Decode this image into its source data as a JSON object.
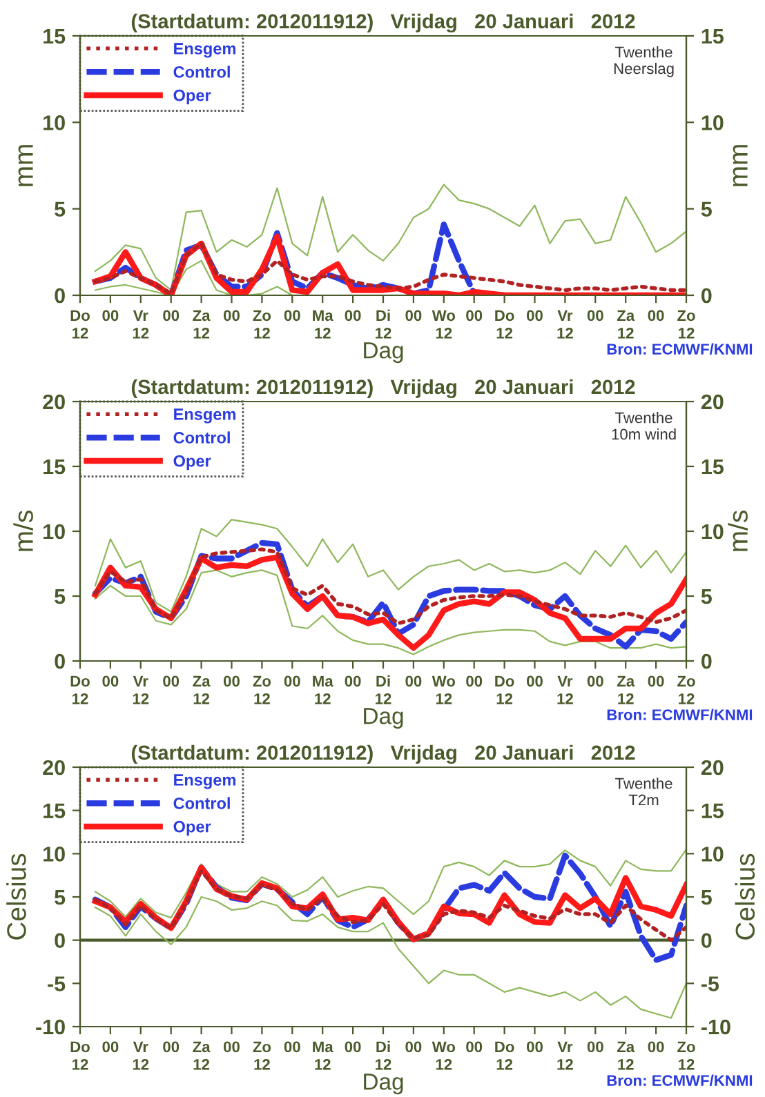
{
  "chart_data": [
    {
      "type": "line",
      "title": "(Startdatum: 2012011912)   Vrijdag   20 Januari   2012",
      "xlabel": "Dag",
      "ylabel": "mm",
      "y2label": "mm",
      "annotations": [
        "Twenthe\nNeerslag",
        "Bron: ECMWF/KNMI"
      ],
      "x": [
        "2012-01-19T18:00",
        "2012-01-20T00:00",
        "2012-01-20T06:00",
        "2012-01-20T12:00",
        "2012-01-20T18:00",
        "2012-01-21T00:00",
        "2012-01-21T06:00",
        "2012-01-21T12:00",
        "2012-01-21T18:00",
        "2012-01-22T00:00",
        "2012-01-22T06:00",
        "2012-01-22T12:00",
        "2012-01-22T18:00",
        "2012-01-23T00:00",
        "2012-01-23T06:00",
        "2012-01-23T12:00",
        "2012-01-23T18:00",
        "2012-01-24T00:00",
        "2012-01-24T06:00",
        "2012-01-24T12:00",
        "2012-01-24T18:00",
        "2012-01-25T00:00",
        "2012-01-25T06:00",
        "2012-01-25T12:00",
        "2012-01-25T18:00",
        "2012-01-26T00:00",
        "2012-01-26T06:00",
        "2012-01-26T12:00",
        "2012-01-26T18:00",
        "2012-01-27T00:00",
        "2012-01-27T06:00",
        "2012-01-27T12:00",
        "2012-01-27T18:00",
        "2012-01-28T00:00",
        "2012-01-28T06:00",
        "2012-01-28T12:00",
        "2012-01-28T18:00",
        "2012-01-29T00:00",
        "2012-01-29T06:00",
        "2012-01-29T12:00"
      ],
      "xlim": [
        "2012-01-19T12:00",
        "2012-01-29T12:00"
      ],
      "xticks": [
        {
          "value": "2012-01-19T12:00",
          "label": "Do\n12"
        },
        {
          "value": "2012-01-20T00:00",
          "label": "00"
        },
        {
          "value": "2012-01-20T12:00",
          "label": "Vr\n12"
        },
        {
          "value": "2012-01-21T00:00",
          "label": "00"
        },
        {
          "value": "2012-01-21T12:00",
          "label": "Za\n12"
        },
        {
          "value": "2012-01-22T00:00",
          "label": "00"
        },
        {
          "value": "2012-01-22T12:00",
          "label": "Zo\n12"
        },
        {
          "value": "2012-01-23T00:00",
          "label": "00"
        },
        {
          "value": "2012-01-23T12:00",
          "label": "Ma\n12"
        },
        {
          "value": "2012-01-24T00:00",
          "label": "00"
        },
        {
          "value": "2012-01-24T12:00",
          "label": "Di\n12"
        },
        {
          "value": "2012-01-25T00:00",
          "label": "00"
        },
        {
          "value": "2012-01-25T12:00",
          "label": "Wo\n12"
        },
        {
          "value": "2012-01-26T00:00",
          "label": "00"
        },
        {
          "value": "2012-01-26T12:00",
          "label": "Do\n12"
        },
        {
          "value": "2012-01-27T00:00",
          "label": "00"
        },
        {
          "value": "2012-01-27T12:00",
          "label": "Vr\n12"
        },
        {
          "value": "2012-01-28T00:00",
          "label": "00"
        },
        {
          "value": "2012-01-28T12:00",
          "label": "Za\n12"
        },
        {
          "value": "2012-01-29T00:00",
          "label": "00"
        },
        {
          "value": "2012-01-29T12:00",
          "label": "Zo\n12"
        }
      ],
      "ylim": [
        0,
        15
      ],
      "yticks": [
        0,
        5,
        10,
        15
      ],
      "y2lim": [
        0,
        15
      ],
      "y2ticks": [
        0,
        5,
        10,
        15
      ],
      "legend": "top left",
      "grid": false,
      "series": [
        {
          "color": "#8fb85c",
          "values": [
            1.4,
            2.0,
            2.9,
            2.7,
            1.0,
            0.3,
            4.8,
            4.9,
            2.5,
            3.2,
            2.8,
            3.5,
            6.2,
            3.0,
            2.3,
            5.7,
            2.5,
            3.5,
            2.6,
            2.0,
            3.0,
            4.5,
            5.0,
            6.4,
            5.5,
            5.3,
            5.0,
            4.5,
            4.0,
            5.2,
            3.0,
            4.3,
            4.4,
            3.0,
            3.2,
            5.7,
            4.2,
            2.5,
            3.0,
            3.7
          ]
        },
        {
          "color": "#8fb85c",
          "values": [
            0.3,
            0.5,
            0.6,
            0.4,
            0.2,
            0.0,
            1.5,
            2.0,
            0.3,
            0.0,
            0.0,
            0.1,
            0.5,
            0.0,
            null,
            null,
            null,
            null,
            null,
            null,
            null,
            null,
            null,
            null,
            null,
            null,
            null,
            null,
            null,
            null,
            null,
            null,
            null,
            null,
            null,
            null,
            null,
            null,
            null,
            null
          ]
        },
        {
          "name": "Ensgem",
          "color": "#b22222",
          "line_style": "dotted",
          "values": [
            0.8,
            1.0,
            1.4,
            1.0,
            0.6,
            0.1,
            2.3,
            3.0,
            1.2,
            0.9,
            0.8,
            1.2,
            2.0,
            1.2,
            0.9,
            1.1,
            1.1,
            0.8,
            0.6,
            0.5,
            0.4,
            0.5,
            0.9,
            1.2,
            1.1,
            1.0,
            0.9,
            0.8,
            0.6,
            0.5,
            0.4,
            0.3,
            0.4,
            0.4,
            0.3,
            0.4,
            0.5,
            0.4,
            0.3,
            0.3
          ]
        },
        {
          "name": "Control",
          "color": "#2a3be0",
          "line_style": "dashed",
          "values": [
            0.8,
            1.0,
            1.6,
            1.0,
            0.6,
            0.0,
            2.6,
            2.9,
            1.2,
            0.5,
            0.5,
            1.2,
            3.6,
            0.8,
            0.4,
            1.3,
            1.0,
            0.6,
            0.4,
            0.6,
            0.4,
            0.1,
            0.3,
            4.1,
            2.0,
            0.1,
            0.0,
            0.0,
            null,
            null,
            null,
            null,
            null,
            null,
            null,
            null,
            null,
            null,
            null,
            null
          ]
        },
        {
          "name": "Oper",
          "color": "#ff1a1a",
          "line_style": "solid",
          "values": [
            0.8,
            1.1,
            2.5,
            1.0,
            0.6,
            0.0,
            2.3,
            3.0,
            1.0,
            0.2,
            0.2,
            1.5,
            3.4,
            0.3,
            0.2,
            1.3,
            1.8,
            0.3,
            0.3,
            0.3,
            0.4,
            0.1,
            0.1,
            0.1,
            0.0,
            0.2,
            0.1,
            0.0,
            0.0,
            0.0,
            0.0,
            0.0,
            0.0,
            0.0,
            0.0,
            0.0,
            0.0,
            0.0,
            0.0,
            0.0
          ]
        }
      ]
    },
    {
      "type": "line",
      "title": "(Startdatum: 2012011912)   Vrijdag   20 Januari   2012",
      "xlabel": "Dag",
      "ylabel": "m/s",
      "y2label": "m/s",
      "annotations": [
        "Twenthe\n10m wind",
        "Bron: ECMWF/KNMI"
      ],
      "x": [
        "2012-01-19T18:00",
        "2012-01-20T00:00",
        "2012-01-20T06:00",
        "2012-01-20T12:00",
        "2012-01-20T18:00",
        "2012-01-21T00:00",
        "2012-01-21T06:00",
        "2012-01-21T12:00",
        "2012-01-21T18:00",
        "2012-01-22T00:00",
        "2012-01-22T06:00",
        "2012-01-22T12:00",
        "2012-01-22T18:00",
        "2012-01-23T00:00",
        "2012-01-23T06:00",
        "2012-01-23T12:00",
        "2012-01-23T18:00",
        "2012-01-24T00:00",
        "2012-01-24T06:00",
        "2012-01-24T12:00",
        "2012-01-24T18:00",
        "2012-01-25T00:00",
        "2012-01-25T06:00",
        "2012-01-25T12:00",
        "2012-01-25T18:00",
        "2012-01-26T00:00",
        "2012-01-26T06:00",
        "2012-01-26T12:00",
        "2012-01-26T18:00",
        "2012-01-27T00:00",
        "2012-01-27T06:00",
        "2012-01-27T12:00",
        "2012-01-27T18:00",
        "2012-01-28T00:00",
        "2012-01-28T06:00",
        "2012-01-28T12:00",
        "2012-01-28T18:00",
        "2012-01-29T00:00",
        "2012-01-29T06:00",
        "2012-01-29T12:00"
      ],
      "xlim": [
        "2012-01-19T12:00",
        "2012-01-29T12:00"
      ],
      "xticks": [
        {
          "value": "2012-01-19T12:00",
          "label": "Do\n12"
        },
        {
          "value": "2012-01-20T00:00",
          "label": "00"
        },
        {
          "value": "2012-01-20T12:00",
          "label": "Vr\n12"
        },
        {
          "value": "2012-01-21T00:00",
          "label": "00"
        },
        {
          "value": "2012-01-21T12:00",
          "label": "Za\n12"
        },
        {
          "value": "2012-01-22T00:00",
          "label": "00"
        },
        {
          "value": "2012-01-22T12:00",
          "label": "Zo\n12"
        },
        {
          "value": "2012-01-23T00:00",
          "label": "00"
        },
        {
          "value": "2012-01-23T12:00",
          "label": "Ma\n12"
        },
        {
          "value": "2012-01-24T00:00",
          "label": "00"
        },
        {
          "value": "2012-01-24T12:00",
          "label": "Di\n12"
        },
        {
          "value": "2012-01-25T00:00",
          "label": "00"
        },
        {
          "value": "2012-01-25T12:00",
          "label": "Wo\n12"
        },
        {
          "value": "2012-01-26T00:00",
          "label": "00"
        },
        {
          "value": "2012-01-26T12:00",
          "label": "Do\n12"
        },
        {
          "value": "2012-01-27T00:00",
          "label": "00"
        },
        {
          "value": "2012-01-27T12:00",
          "label": "Vr\n12"
        },
        {
          "value": "2012-01-28T00:00",
          "label": "00"
        },
        {
          "value": "2012-01-28T12:00",
          "label": "Za\n12"
        },
        {
          "value": "2012-01-29T00:00",
          "label": "00"
        },
        {
          "value": "2012-01-29T12:00",
          "label": "Zo\n12"
        }
      ],
      "ylim": [
        0,
        20
      ],
      "yticks": [
        0,
        5,
        10,
        15,
        20
      ],
      "y2lim": [
        0,
        20
      ],
      "y2ticks": [
        0,
        5,
        10,
        15,
        20
      ],
      "legend": "top left",
      "grid": false,
      "series": [
        {
          "color": "#8fb85c",
          "values": [
            5.8,
            9.4,
            7.2,
            7.7,
            4.5,
            3.8,
            6.5,
            10.2,
            9.6,
            10.9,
            10.7,
            10.5,
            10.2,
            8.8,
            7.3,
            9.4,
            7.6,
            9.0,
            6.5,
            7.0,
            5.5,
            6.5,
            7.3,
            7.5,
            7.8,
            7.0,
            7.5,
            6.9,
            7.0,
            6.8,
            7.0,
            7.6,
            6.7,
            8.5,
            7.3,
            8.9,
            7.2,
            8.5,
            6.8,
            8.4
          ]
        },
        {
          "color": "#8fb85c",
          "values": [
            4.8,
            5.8,
            5.0,
            5.0,
            3.1,
            2.8,
            4.0,
            6.8,
            7.0,
            6.5,
            6.8,
            7.0,
            6.6,
            2.7,
            2.5,
            3.5,
            2.3,
            1.6,
            1.3,
            1.3,
            1.0,
            0.5,
            1.1,
            1.6,
            2.0,
            2.2,
            2.3,
            2.4,
            2.4,
            2.3,
            1.5,
            1.2,
            1.5,
            1.5,
            1.0,
            1.0,
            1.0,
            1.3,
            1.0,
            1.1
          ]
        },
        {
          "name": "Ensgem",
          "color": "#b22222",
          "line_style": "dotted",
          "values": [
            5.2,
            6.9,
            6.1,
            6.3,
            3.9,
            3.3,
            5.3,
            8.0,
            8.3,
            8.4,
            8.5,
            8.6,
            8.4,
            5.6,
            5.1,
            5.8,
            4.4,
            4.2,
            3.6,
            3.7,
            2.9,
            3.2,
            4.2,
            4.7,
            4.9,
            5.0,
            5.0,
            5.1,
            5.0,
            4.6,
            4.3,
            4.0,
            3.5,
            3.5,
            3.4,
            3.7,
            3.4,
            3.0,
            3.3,
            3.9
          ]
        },
        {
          "name": "Control",
          "color": "#2a3be0",
          "line_style": "dashed",
          "values": [
            5.2,
            6.4,
            6.0,
            6.5,
            3.8,
            3.3,
            5.0,
            8.1,
            7.9,
            7.9,
            8.5,
            9.1,
            9.0,
            5.5,
            4.2,
            5.0,
            3.5,
            3.4,
            3.0,
            4.5,
            2.1,
            2.8,
            5.0,
            5.4,
            5.5,
            5.5,
            5.4,
            5.4,
            5.0,
            4.3,
            4.0,
            5.0,
            3.5,
            2.5,
            2.0,
            1.1,
            2.4,
            2.3,
            1.7,
            3.0
          ]
        },
        {
          "name": "Oper",
          "color": "#ff1a1a",
          "line_style": "solid",
          "values": [
            5.1,
            7.2,
            5.8,
            5.7,
            4.0,
            3.3,
            5.5,
            7.9,
            7.2,
            7.4,
            7.3,
            7.8,
            8.0,
            5.2,
            4.0,
            5.0,
            3.5,
            3.4,
            2.9,
            3.2,
            2.0,
            1.0,
            2.0,
            3.9,
            4.4,
            4.6,
            4.4,
            5.3,
            5.3,
            4.7,
            3.7,
            3.3,
            1.7,
            1.7,
            1.7,
            2.5,
            2.5,
            3.7,
            4.4,
            6.3
          ]
        }
      ]
    },
    {
      "type": "line",
      "title": "(Startdatum: 2012011912)   Vrijdag   20 Januari   2012",
      "xlabel": "Dag",
      "ylabel": "Celsius",
      "y2label": "Celsius",
      "annotations": [
        "Twenthe\nT2m",
        "Bron: ECMWF/KNMI"
      ],
      "x": [
        "2012-01-19T18:00",
        "2012-01-20T00:00",
        "2012-01-20T06:00",
        "2012-01-20T12:00",
        "2012-01-20T18:00",
        "2012-01-21T00:00",
        "2012-01-21T06:00",
        "2012-01-21T12:00",
        "2012-01-21T18:00",
        "2012-01-22T00:00",
        "2012-01-22T06:00",
        "2012-01-22T12:00",
        "2012-01-22T18:00",
        "2012-01-23T00:00",
        "2012-01-23T06:00",
        "2012-01-23T12:00",
        "2012-01-23T18:00",
        "2012-01-24T00:00",
        "2012-01-24T06:00",
        "2012-01-24T12:00",
        "2012-01-24T18:00",
        "2012-01-25T00:00",
        "2012-01-25T06:00",
        "2012-01-25T12:00",
        "2012-01-25T18:00",
        "2012-01-26T00:00",
        "2012-01-26T06:00",
        "2012-01-26T12:00",
        "2012-01-26T18:00",
        "2012-01-27T00:00",
        "2012-01-27T06:00",
        "2012-01-27T12:00",
        "2012-01-27T18:00",
        "2012-01-28T00:00",
        "2012-01-28T06:00",
        "2012-01-28T12:00",
        "2012-01-28T18:00",
        "2012-01-29T00:00",
        "2012-01-29T06:00",
        "2012-01-29T12:00"
      ],
      "xlim": [
        "2012-01-19T12:00",
        "2012-01-29T12:00"
      ],
      "xticks": [
        {
          "value": "2012-01-19T12:00",
          "label": "Do\n12"
        },
        {
          "value": "2012-01-20T00:00",
          "label": "00"
        },
        {
          "value": "2012-01-20T12:00",
          "label": "Vr\n12"
        },
        {
          "value": "2012-01-21T00:00",
          "label": "00"
        },
        {
          "value": "2012-01-21T12:00",
          "label": "Za\n12"
        },
        {
          "value": "2012-01-22T00:00",
          "label": "00"
        },
        {
          "value": "2012-01-22T12:00",
          "label": "Zo\n12"
        },
        {
          "value": "2012-01-23T00:00",
          "label": "00"
        },
        {
          "value": "2012-01-23T12:00",
          "label": "Ma\n12"
        },
        {
          "value": "2012-01-24T00:00",
          "label": "00"
        },
        {
          "value": "2012-01-24T12:00",
          "label": "Di\n12"
        },
        {
          "value": "2012-01-25T00:00",
          "label": "00"
        },
        {
          "value": "2012-01-25T12:00",
          "label": "Wo\n12"
        },
        {
          "value": "2012-01-26T00:00",
          "label": "00"
        },
        {
          "value": "2012-01-26T12:00",
          "label": "Do\n12"
        },
        {
          "value": "2012-01-27T00:00",
          "label": "00"
        },
        {
          "value": "2012-01-27T12:00",
          "label": "Vr\n12"
        },
        {
          "value": "2012-01-28T00:00",
          "label": "00"
        },
        {
          "value": "2012-01-28T12:00",
          "label": "Za\n12"
        },
        {
          "value": "2012-01-29T00:00",
          "label": "00"
        },
        {
          "value": "2012-01-29T12:00",
          "label": "Zo\n12"
        }
      ],
      "ylim": [
        -10,
        20
      ],
      "yticks": [
        -10,
        -5,
        0,
        5,
        10,
        15,
        20
      ],
      "y2lim": [
        -10,
        20
      ],
      "y2ticks": [
        -10,
        -5,
        0,
        5,
        10,
        15,
        20
      ],
      "legend": "top left",
      "grid": false,
      "ref_lines": [
        {
          "axis": "y",
          "value": 0,
          "color": "#4a5a2a"
        }
      ],
      "series": [
        {
          "color": "#8fb85c",
          "values": [
            5.6,
            4.5,
            2.7,
            4.8,
            3.2,
            2.6,
            5.5,
            8.8,
            6.5,
            5.6,
            5.6,
            7.3,
            6.5,
            5.0,
            5.8,
            7.3,
            5.0,
            5.7,
            6.2,
            6.0,
            4.5,
            3.0,
            4.5,
            8.5,
            9.0,
            8.5,
            7.5,
            9.2,
            8.5,
            8.5,
            8.8,
            10.4,
            9.2,
            8.5,
            6.3,
            9.2,
            8.2,
            8.0,
            8.0,
            10.5
          ]
        },
        {
          "color": "#8fb85c",
          "values": [
            3.8,
            2.8,
            0.5,
            3.0,
            1.0,
            -0.5,
            1.5,
            5.0,
            4.5,
            3.5,
            3.7,
            4.5,
            4.0,
            2.3,
            2.2,
            3.0,
            1.5,
            1.0,
            1.0,
            2.0,
            -1.0,
            -3.0,
            -5.0,
            -3.5,
            -4.0,
            -4.0,
            -5.0,
            -6.0,
            -5.5,
            -6.0,
            -6.5,
            -6.0,
            -7.0,
            -6.0,
            -7.5,
            -6.5,
            -8.0,
            -8.5,
            -9.0,
            -5.0
          ]
        },
        {
          "name": "Ensgem",
          "color": "#b22222",
          "line_style": "dotted",
          "values": [
            4.7,
            3.7,
            1.8,
            4.0,
            2.4,
            1.4,
            4.3,
            8.0,
            5.9,
            5.1,
            4.8,
            6.4,
            5.8,
            4.2,
            3.5,
            4.9,
            2.8,
            2.1,
            2.3,
            4.2,
            1.8,
            0.2,
            0.6,
            3.0,
            3.4,
            3.2,
            2.6,
            4.0,
            3.4,
            2.8,
            2.5,
            3.6,
            3.0,
            3.0,
            2.0,
            4.0,
            2.4,
            1.2,
            0.0,
            1.5
          ]
        },
        {
          "name": "Control",
          "color": "#2a3be0",
          "line_style": "dashed",
          "values": [
            4.7,
            3.8,
            1.5,
            3.9,
            2.5,
            1.4,
            4.2,
            8.4,
            6.1,
            4.9,
            4.6,
            6.5,
            5.9,
            4.4,
            3.0,
            5.0,
            2.3,
            1.5,
            2.4,
            4.6,
            2.0,
            0.1,
            0.8,
            3.5,
            6.0,
            6.4,
            5.7,
            7.8,
            6.0,
            5.0,
            4.8,
            9.8,
            7.7,
            5.0,
            1.6,
            5.6,
            0.5,
            -2.3,
            -1.7,
            4.0
          ]
        },
        {
          "name": "Oper",
          "color": "#ff1a1a",
          "line_style": "solid",
          "values": [
            4.5,
            3.8,
            2.1,
            4.2,
            2.6,
            1.4,
            4.5,
            8.4,
            5.9,
            5.1,
            4.7,
            6.6,
            6.0,
            3.9,
            3.7,
            5.3,
            2.4,
            2.6,
            2.3,
            4.7,
            2.1,
            0.1,
            0.8,
            3.9,
            3.1,
            3.0,
            2.0,
            5.2,
            3.0,
            2.1,
            2.0,
            5.2,
            3.7,
            4.8,
            3.0,
            7.2,
            3.9,
            3.5,
            2.8,
            6.4
          ]
        }
      ]
    }
  ]
}
